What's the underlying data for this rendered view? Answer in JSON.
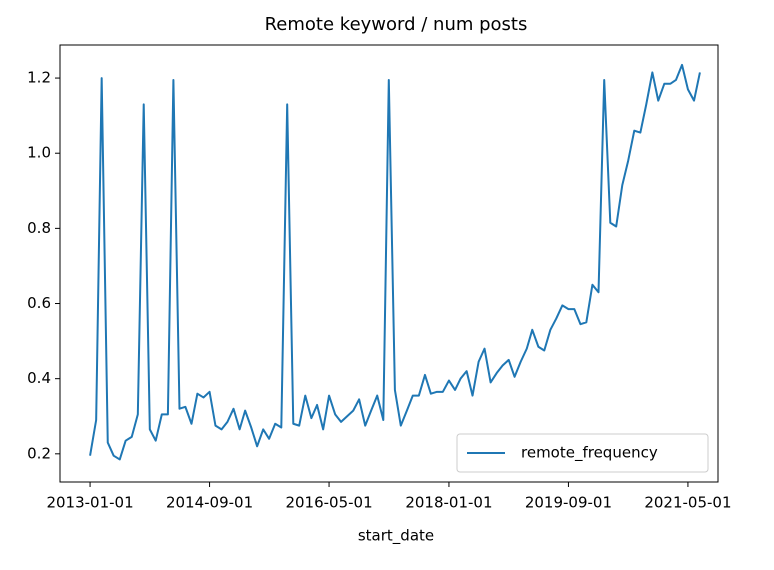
{
  "chart_data": {
    "type": "line",
    "title": "Remote keyword / num posts",
    "xlabel": "start_date",
    "x": [
      "2013-01-01",
      "2013-02-01",
      "2013-03-01",
      "2013-04-01",
      "2013-05-01",
      "2013-06-01",
      "2013-07-01",
      "2013-08-01",
      "2013-09-01",
      "2013-10-01",
      "2013-11-01",
      "2013-12-01",
      "2014-01-01",
      "2014-02-01",
      "2014-03-01",
      "2014-04-01",
      "2014-05-01",
      "2014-06-01",
      "2014-07-01",
      "2014-08-01",
      "2014-09-01",
      "2014-10-01",
      "2014-11-01",
      "2014-12-01",
      "2015-01-01",
      "2015-02-01",
      "2015-03-01",
      "2015-04-01",
      "2015-05-01",
      "2015-06-01",
      "2015-07-01",
      "2015-08-01",
      "2015-09-01",
      "2015-10-01",
      "2015-11-01",
      "2015-12-01",
      "2016-01-01",
      "2016-02-01",
      "2016-03-01",
      "2016-04-01",
      "2016-05-01",
      "2016-06-01",
      "2016-07-01",
      "2016-08-01",
      "2016-09-01",
      "2016-10-01",
      "2016-11-01",
      "2016-12-01",
      "2017-01-01",
      "2017-02-01",
      "2017-03-01",
      "2017-04-01",
      "2017-05-01",
      "2017-06-01",
      "2017-07-01",
      "2017-08-01",
      "2017-09-01",
      "2017-10-01",
      "2017-11-01",
      "2017-12-01",
      "2018-01-01",
      "2018-02-01",
      "2018-03-01",
      "2018-04-01",
      "2018-05-01",
      "2018-06-01",
      "2018-07-01",
      "2018-08-01",
      "2018-09-01",
      "2018-10-01",
      "2018-11-01",
      "2018-12-01",
      "2019-01-01",
      "2019-02-01",
      "2019-03-01",
      "2019-04-01",
      "2019-05-01",
      "2019-06-01",
      "2019-07-01",
      "2019-08-01",
      "2019-09-01",
      "2019-10-01",
      "2019-11-01",
      "2019-12-01",
      "2020-01-01",
      "2020-02-01",
      "2020-03-01",
      "2020-04-01",
      "2020-05-01",
      "2020-06-01",
      "2020-07-01",
      "2020-08-01",
      "2020-09-01",
      "2020-10-01",
      "2020-11-01",
      "2020-12-01",
      "2021-01-01",
      "2021-02-01",
      "2021-03-01",
      "2021-04-01",
      "2021-05-01",
      "2021-06-01",
      "2021-07-01"
    ],
    "series": [
      {
        "name": "remote_frequency",
        "color": "#1f77b4",
        "values": [
          0.195,
          0.29,
          1.2,
          0.23,
          0.195,
          0.185,
          0.235,
          0.245,
          0.305,
          1.13,
          0.265,
          0.235,
          0.305,
          0.305,
          1.195,
          0.32,
          0.325,
          0.28,
          0.36,
          0.35,
          0.365,
          0.275,
          0.265,
          0.285,
          0.32,
          0.265,
          0.315,
          0.27,
          0.22,
          0.265,
          0.24,
          0.28,
          0.27,
          1.13,
          0.28,
          0.275,
          0.355,
          0.295,
          0.33,
          0.265,
          0.355,
          0.305,
          0.285,
          0.3,
          0.315,
          0.345,
          0.275,
          0.315,
          0.355,
          0.29,
          1.195,
          0.37,
          0.275,
          0.315,
          0.355,
          0.355,
          0.41,
          0.36,
          0.365,
          0.365,
          0.395,
          0.37,
          0.4,
          0.42,
          0.355,
          0.445,
          0.48,
          0.39,
          0.415,
          0.435,
          0.45,
          0.405,
          0.445,
          0.48,
          0.53,
          0.485,
          0.475,
          0.53,
          0.56,
          0.595,
          0.585,
          0.585,
          0.545,
          0.55,
          0.65,
          0.63,
          1.195,
          0.815,
          0.805,
          0.915,
          0.98,
          1.06,
          1.055,
          1.13,
          1.215,
          1.14,
          1.185,
          1.185,
          1.195,
          1.235,
          1.17,
          1.14,
          1.215
        ]
      }
    ],
    "xlim": [
      "2012-08-01",
      "2021-10-01"
    ],
    "xticks": [
      "2013-01-01",
      "2014-09-01",
      "2016-05-01",
      "2018-01-01",
      "2019-09-01",
      "2021-05-01"
    ],
    "ylim": [
      0.125,
      1.288
    ],
    "yticks": [
      0.2,
      0.4,
      0.6,
      0.8,
      {
        "value": 1,
        "label": "1.0"
      },
      {
        "value": 1.2,
        "label": "1.2"
      }
    ],
    "grid": false,
    "legend": "lower right"
  }
}
